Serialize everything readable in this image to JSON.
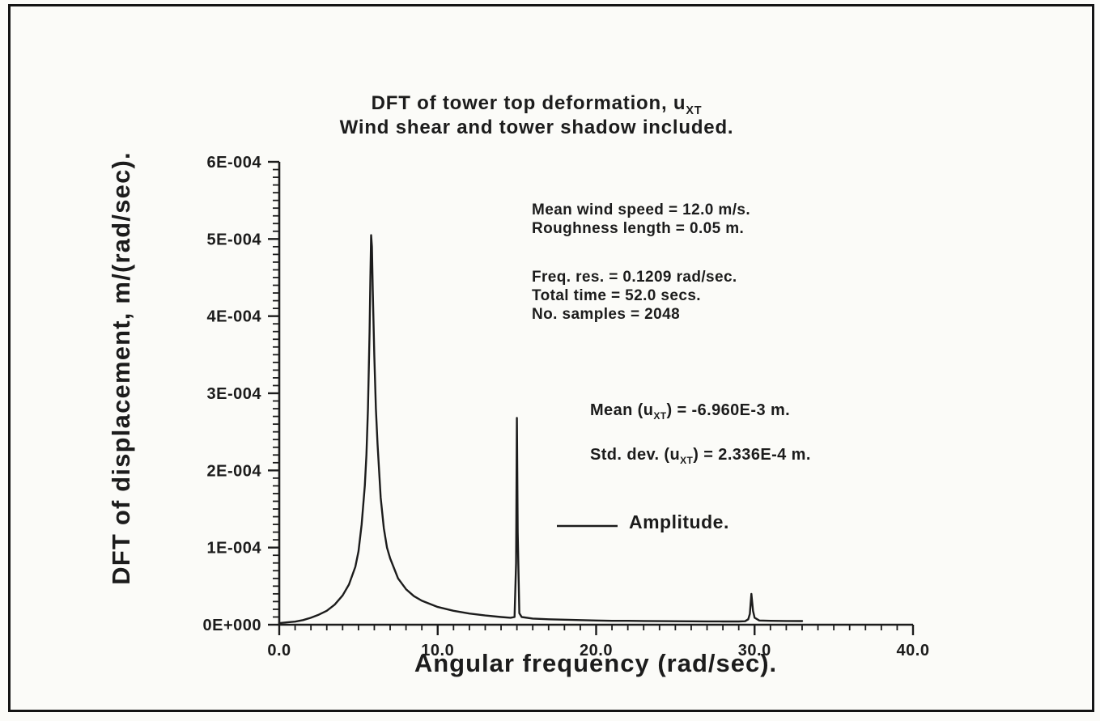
{
  "colors": {
    "ink": "#1c1c1c",
    "background": "#fbfbf8"
  },
  "chart_data": {
    "type": "line",
    "title": "DFT of tower top deformation, uXT",
    "title_parts": {
      "main": "DFT of tower top deformation, u",
      "subscript": "XT"
    },
    "subtitle": "Wind shear and tower shadow included.",
    "xlabel": "Angular frequency (rad/sec).",
    "ylabel": "DFT of displacement, m/(rad/sec).",
    "xlim": [
      0,
      40
    ],
    "ylim": [
      0,
      0.0006
    ],
    "grid": false,
    "legend": {
      "label": "Amplitude.",
      "position": "center-right"
    },
    "x_ticks": [
      {
        "value": 0,
        "label": "0.0"
      },
      {
        "value": 10,
        "label": "10.0"
      },
      {
        "value": 20,
        "label": "20.0"
      },
      {
        "value": 30,
        "label": "30.0"
      },
      {
        "value": 40,
        "label": "40.0"
      }
    ],
    "y_ticks": [
      {
        "value": 0,
        "label": "0E+000"
      },
      {
        "value": 0.0001,
        "label": "1E-004"
      },
      {
        "value": 0.0002,
        "label": "2E-004"
      },
      {
        "value": 0.0003,
        "label": "3E-004"
      },
      {
        "value": 0.0004,
        "label": "4E-004"
      },
      {
        "value": 0.0005,
        "label": "5E-004"
      },
      {
        "value": 0.0006,
        "label": "6E-004"
      }
    ],
    "x_minor_step": 1,
    "x_major_every": 10,
    "y_minor_step": 1e-05,
    "y_major_every": 10,
    "annotations": {
      "wind_block": [
        "Mean wind speed = 12.0 m/s.",
        "Roughness length = 0.05 m."
      ],
      "sampling_block": [
        "Freq. res. = 0.1209 rad/sec.",
        "Total time = 52.0 secs.",
        "No. samples = 2048"
      ],
      "mean_line": {
        "prefix": "Mean (u",
        "sub": "XT",
        "suffix": ") = -6.960E-3 m."
      },
      "std_line": {
        "prefix": "Std. dev. (u",
        "sub": "XT",
        "suffix": ") = 2.336E-4 m."
      }
    },
    "series": [
      {
        "name": "Amplitude.",
        "color": "#1c1c1c",
        "points": [
          [
            0.0,
            2e-06
          ],
          [
            0.5,
            3e-06
          ],
          [
            1.0,
            4e-06
          ],
          [
            1.5,
            6e-06
          ],
          [
            2.0,
            9e-06
          ],
          [
            2.5,
            1.3e-05
          ],
          [
            3.0,
            1.8e-05
          ],
          [
            3.5,
            2.6e-05
          ],
          [
            4.0,
            3.8e-05
          ],
          [
            4.4,
            5.2e-05
          ],
          [
            4.8,
            7.5e-05
          ],
          [
            5.0,
            9.5e-05
          ],
          [
            5.2,
            0.00013
          ],
          [
            5.4,
            0.00018
          ],
          [
            5.5,
            0.00022
          ],
          [
            5.6,
            0.00028
          ],
          [
            5.7,
            0.00038
          ],
          [
            5.75,
            0.00045
          ],
          [
            5.8,
            0.000505
          ],
          [
            5.85,
            0.00049
          ],
          [
            5.9,
            0.000435
          ],
          [
            6.0,
            0.00035
          ],
          [
            6.1,
            0.00028
          ],
          [
            6.2,
            0.000235
          ],
          [
            6.4,
            0.000165
          ],
          [
            6.6,
            0.000125
          ],
          [
            6.8,
            0.0001
          ],
          [
            7.0,
            8.6e-05
          ],
          [
            7.5,
            6e-05
          ],
          [
            8.0,
            4.6e-05
          ],
          [
            8.5,
            3.7e-05
          ],
          [
            9.0,
            3.1e-05
          ],
          [
            9.5,
            2.7e-05
          ],
          [
            10.0,
            2.3e-05
          ],
          [
            11.0,
            1.8e-05
          ],
          [
            12.0,
            1.45e-05
          ],
          [
            13.0,
            1.2e-05
          ],
          [
            14.0,
            1e-05
          ],
          [
            14.6,
            9e-06
          ],
          [
            14.85,
            1e-05
          ],
          [
            14.95,
            8e-05
          ],
          [
            15.0,
            0.000268
          ],
          [
            15.05,
            0.00012
          ],
          [
            15.15,
            1.5e-05
          ],
          [
            15.3,
            1e-05
          ],
          [
            16.0,
            8e-06
          ],
          [
            17.0,
            7e-06
          ],
          [
            18.0,
            6.5e-06
          ],
          [
            19.0,
            6e-06
          ],
          [
            20.0,
            5.5e-06
          ],
          [
            21.0,
            5e-06
          ],
          [
            22.0,
            5e-06
          ],
          [
            23.0,
            4.8e-06
          ],
          [
            24.0,
            4.6e-06
          ],
          [
            25.0,
            4.5e-06
          ],
          [
            26.0,
            4.4e-06
          ],
          [
            27.0,
            4.3e-06
          ],
          [
            28.0,
            4.2e-06
          ],
          [
            29.0,
            4.2e-06
          ],
          [
            29.4,
            4.5e-06
          ],
          [
            29.6,
            7e-06
          ],
          [
            29.7,
            1.4e-05
          ],
          [
            29.8,
            4e-05
          ],
          [
            29.9,
            1.8e-05
          ],
          [
            30.0,
            9e-06
          ],
          [
            30.3,
            5.5e-06
          ],
          [
            31.0,
            5e-06
          ],
          [
            32.0,
            4.8e-06
          ],
          [
            33.0,
            4.7e-06
          ]
        ]
      }
    ]
  }
}
